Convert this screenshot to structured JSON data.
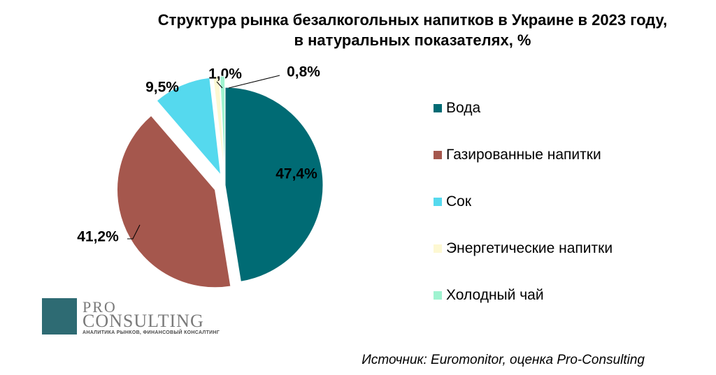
{
  "chart_data": {
    "type": "pie",
    "title": [
      "Структура рынка безалкогольных напитков в Украине в 2023 году,",
      "в натуральных показателях, %"
    ],
    "slices": [
      {
        "name": "Вода",
        "value": 47.4,
        "label": "47,4%",
        "color": "#006b74",
        "exploded": false
      },
      {
        "name": "Газированные напитки",
        "value": 41.2,
        "label": "41,2%",
        "color": "#a5574d",
        "exploded": true
      },
      {
        "name": "Сок",
        "value": 9.5,
        "label": "9,5%",
        "color": "#55d9ee",
        "exploded": true
      },
      {
        "name": "Энергетические напитки",
        "value": 1.0,
        "label": "1,0%",
        "color": "#fdf8d2",
        "exploded": true
      },
      {
        "name": "Холодный чай",
        "value": 0.8,
        "label": "0,8%",
        "color": "#9ff3d0",
        "exploded": true
      }
    ],
    "legend_position": "right"
  },
  "source": "Источник: Euromonitor, оценка Pro-Consulting",
  "logo": {
    "line1": "PRO",
    "line2": "CONSULTING",
    "tagline": "АНАЛИТИКА РЫНКОВ, ФИНАНСОВЫЙ КОНСАЛТИНГ"
  }
}
